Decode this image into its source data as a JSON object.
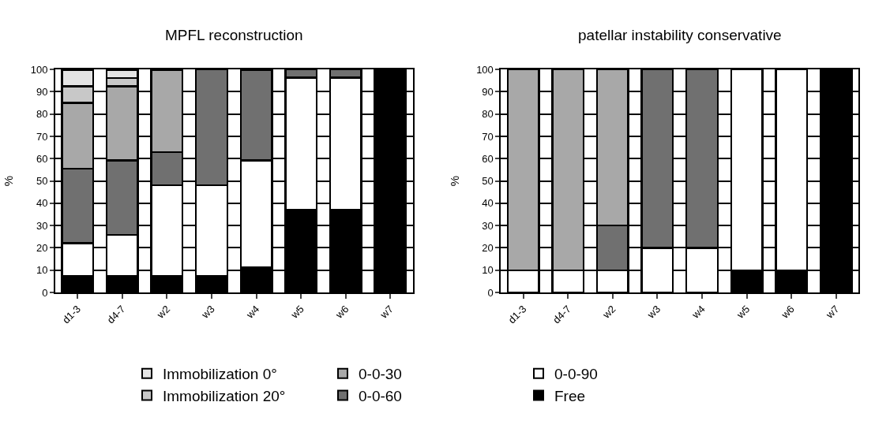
{
  "chart_data": [
    {
      "type": "bar",
      "title": "MPFL reconstruction",
      "ylabel": "%",
      "categories": [
        "d1-3",
        "d4-7",
        "w2",
        "w3",
        "w4",
        "w5",
        "w6",
        "w7"
      ],
      "stacked": true,
      "ylim": [
        0,
        100
      ],
      "yticks": [
        0,
        10,
        20,
        30,
        40,
        50,
        60,
        70,
        80,
        90,
        100
      ],
      "grid": "y",
      "legend": "bottom",
      "series": [
        {
          "name": "Free",
          "color": "#000000",
          "values": [
            7.4,
            7.4,
            7.4,
            7.4,
            11.1,
            37,
            37,
            100
          ]
        },
        {
          "name": "0-0-90",
          "color": "#ffffff",
          "values": [
            14.8,
            18.5,
            40.7,
            40.7,
            48.1,
            59.3,
            59.3,
            null
          ]
        },
        {
          "name": "0-0-60",
          "color": "#707070",
          "values": [
            33.3,
            33.3,
            14.8,
            51.9,
            40.7,
            3.7,
            3.7,
            null
          ]
        },
        {
          "name": "0-0-30",
          "color": "#a8a8a8",
          "values": [
            29.6,
            33.3,
            37,
            null,
            null,
            null,
            null,
            null
          ]
        },
        {
          "name": "Immobilization 20°",
          "color": "#c8c8c8",
          "values": [
            7.4,
            3.7,
            null,
            null,
            null,
            null,
            null,
            null
          ]
        },
        {
          "name": "Immobilization 0°",
          "color": "#e4e4e4",
          "values": [
            7.4,
            3.7,
            null,
            null,
            null,
            null,
            null,
            null
          ]
        }
      ]
    },
    {
      "type": "bar",
      "title": "patellar instability conservative",
      "ylabel": "%",
      "categories": [
        "d1-3",
        "d4-7",
        "w2",
        "w3",
        "w4",
        "w5",
        "w6",
        "w7"
      ],
      "stacked": true,
      "ylim": [
        0,
        100
      ],
      "yticks": [
        0,
        10,
        20,
        30,
        40,
        50,
        60,
        70,
        80,
        90,
        100
      ],
      "grid": "y",
      "series": [
        {
          "color": "#000000",
          "values": [
            null,
            null,
            null,
            null,
            null,
            10,
            10,
            100
          ]
        },
        {
          "color": "#ffffff",
          "values": [
            10,
            10,
            10,
            20,
            20,
            90,
            90,
            null
          ]
        },
        {
          "color": "#707070",
          "values": [
            null,
            null,
            20,
            80,
            80,
            null,
            null,
            null
          ]
        },
        {
          "color": "#a8a8a8",
          "values": [
            90,
            90,
            70,
            null,
            null,
            null,
            null,
            null
          ]
        }
      ]
    }
  ]
}
